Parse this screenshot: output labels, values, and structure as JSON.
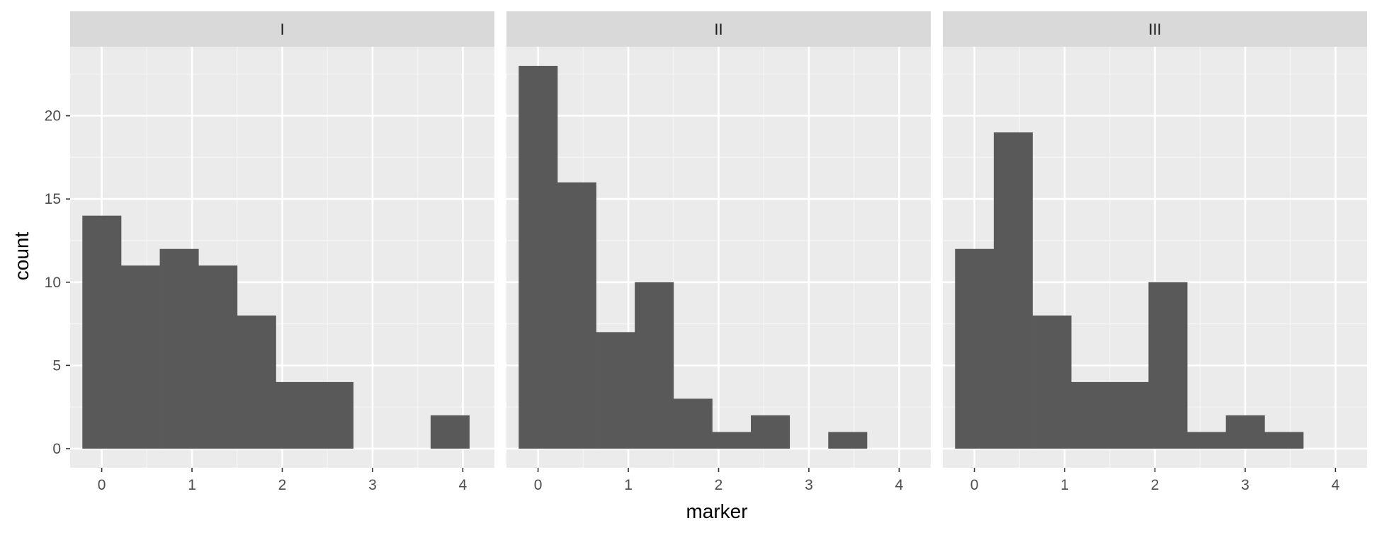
{
  "chart_data": {
    "type": "bar",
    "subtype": "faceted-histogram",
    "title": "",
    "xlabel": "marker",
    "ylabel": "count",
    "xlim": [
      -0.35,
      4.35
    ],
    "ylim": [
      -1.15,
      24.15
    ],
    "x_ticks": [
      "0",
      "1",
      "2",
      "3",
      "4"
    ],
    "y_ticks": [
      "0",
      "5",
      "10",
      "15",
      "20"
    ],
    "grid": true,
    "bar_color": "#595959",
    "panel_background": "#ebebeb",
    "strip_background": "#d9d9d9",
    "bin_width": 0.4286,
    "bin_start": -0.2143,
    "facets": [
      {
        "label": "I",
        "counts": [
          14,
          11,
          12,
          11,
          8,
          4,
          4,
          0,
          0,
          2
        ]
      },
      {
        "label": "II",
        "counts": [
          23,
          16,
          7,
          10,
          3,
          1,
          2,
          0,
          1,
          0
        ]
      },
      {
        "label": "III",
        "counts": [
          12,
          19,
          8,
          4,
          4,
          10,
          1,
          2,
          1,
          0
        ]
      }
    ]
  }
}
